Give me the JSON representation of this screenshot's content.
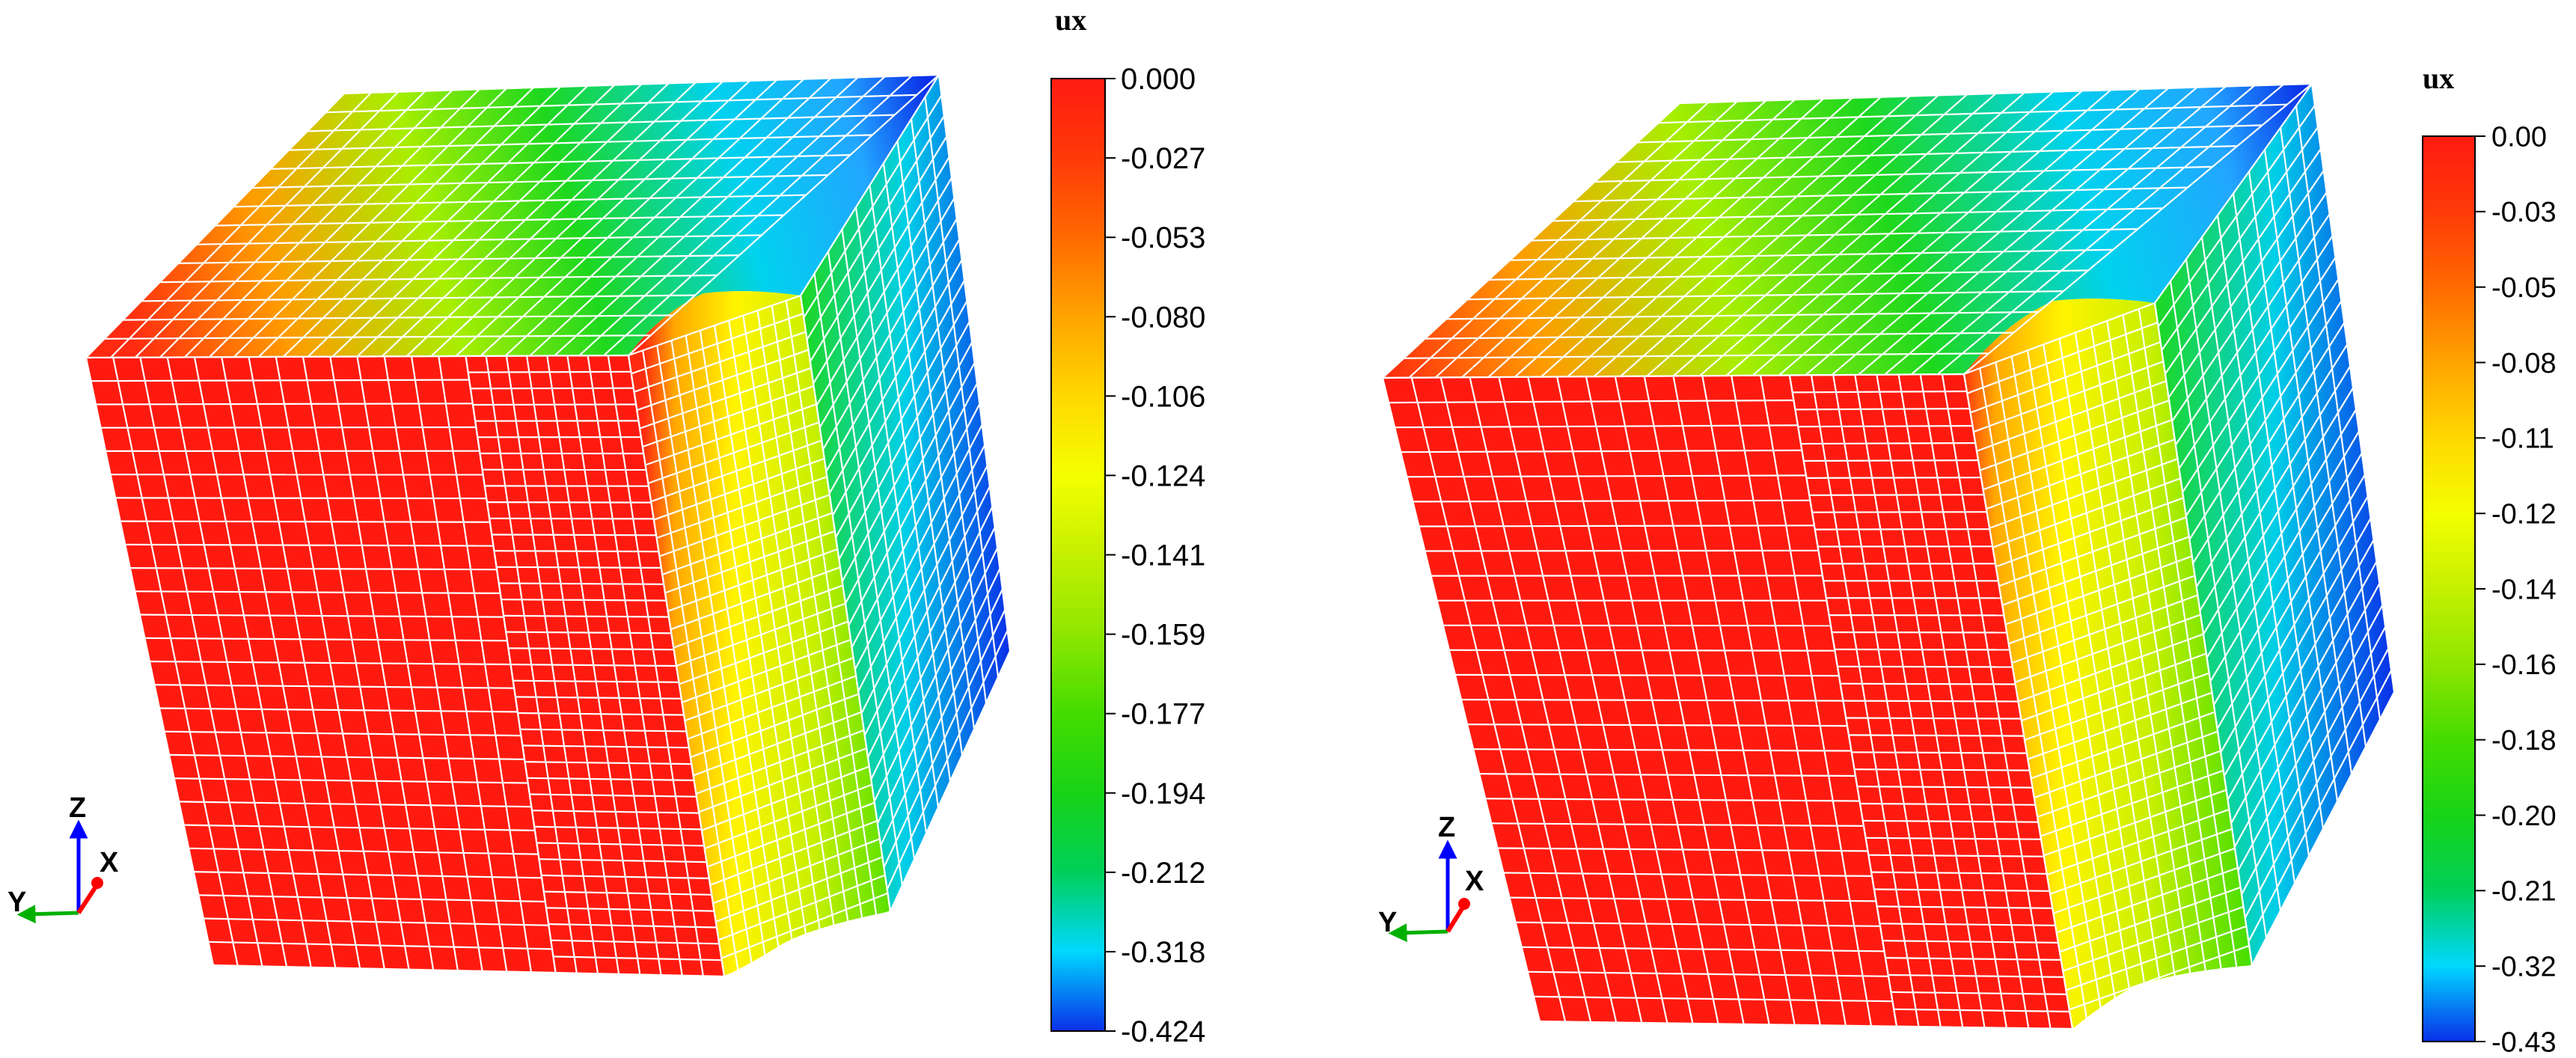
{
  "panels": [
    {
      "title": "ux",
      "colorbar_labels": [
        "0.000",
        "-0.027",
        "-0.053",
        "-0.080",
        "-0.106",
        "-0.124",
        "-0.141",
        "-0.159",
        "-0.177",
        "-0.194",
        "-0.212",
        "-0.318",
        "-0.424"
      ],
      "triad": {
        "z": "Z",
        "x": "X",
        "y": "Y"
      }
    },
    {
      "title": "ux",
      "colorbar_labels": [
        "0.00",
        "-0.03",
        "-0.05",
        "-0.08",
        "-0.11",
        "-0.12",
        "-0.14",
        "-0.16",
        "-0.18",
        "-0.20",
        "-0.21",
        "-0.32",
        "-0.43"
      ],
      "triad": {
        "z": "Z",
        "x": "X",
        "y": "Y"
      }
    }
  ],
  "colors": {
    "red": "#ff1a10",
    "orange": "#ff8a00",
    "yellow": "#f4ff00",
    "green": "#17d317",
    "cyan": "#00d8ff",
    "blue": "#0a2ee8",
    "mesh": "#ffffff",
    "triad_z": "#0000ff",
    "triad_x": "#ff0000",
    "triad_y": "#00b000"
  }
}
